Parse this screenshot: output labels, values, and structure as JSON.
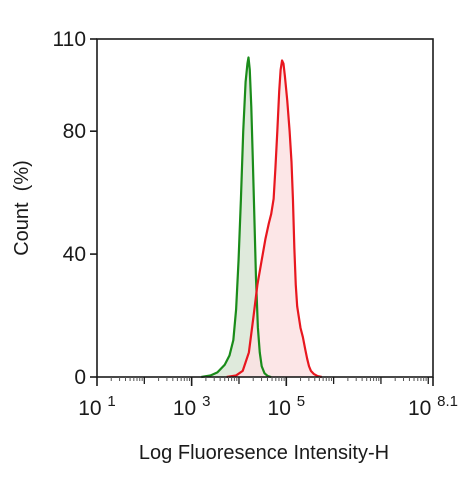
{
  "chart_data": {
    "type": "area",
    "title": "",
    "xlabel": "Log Fluoresence Intensity-H",
    "ylabel": "Count  (%)",
    "x_scale": "log10",
    "xlim": [
      10,
      125892541
    ],
    "ylim": [
      0,
      110
    ],
    "x_ticks": [
      {
        "base": "10",
        "exp": "1",
        "value": 10
      },
      {
        "base": "10",
        "exp": "3",
        "value": 1000
      },
      {
        "base": "10",
        "exp": "5",
        "value": 100000
      },
      {
        "base": "10",
        "exp": "8.1",
        "value": 125892541
      }
    ],
    "y_ticks": [
      {
        "label": "0",
        "value": 0
      },
      {
        "label": "40",
        "value": 40
      },
      {
        "label": "80",
        "value": 80
      },
      {
        "label": "110",
        "value": 110
      }
    ],
    "grid": false,
    "legend": "none",
    "series": [
      {
        "color": "#1a8c1a",
        "fill": "#d9e6d6",
        "points": [
          [
            1600,
            0
          ],
          [
            2500,
            0.5
          ],
          [
            3500,
            1.5
          ],
          [
            5000,
            4
          ],
          [
            6300,
            7
          ],
          [
            7600,
            12
          ],
          [
            8700,
            22
          ],
          [
            9800,
            38
          ],
          [
            11000,
            58
          ],
          [
            12300,
            80
          ],
          [
            13800,
            96
          ],
          [
            15100,
            102
          ],
          [
            15900,
            104
          ],
          [
            16900,
            100
          ],
          [
            18200,
            88
          ],
          [
            19500,
            72
          ],
          [
            20900,
            55
          ],
          [
            22900,
            32
          ],
          [
            25100,
            16
          ],
          [
            27500,
            8
          ],
          [
            30200,
            3.5
          ],
          [
            34700,
            1.2
          ],
          [
            40700,
            0.3
          ],
          [
            47900,
            0
          ]
        ]
      },
      {
        "color": "#e8171f",
        "fill": "#fbe2e3",
        "points": [
          [
            5500,
            0
          ],
          [
            8700,
            0.5
          ],
          [
            12000,
            2
          ],
          [
            16200,
            8
          ],
          [
            20400,
            20
          ],
          [
            24500,
            30
          ],
          [
            30200,
            38
          ],
          [
            36300,
            45
          ],
          [
            42700,
            50
          ],
          [
            47900,
            53
          ],
          [
            54000,
            58
          ],
          [
            58900,
            68
          ],
          [
            64600,
            80
          ],
          [
            70800,
            93
          ],
          [
            75900,
            100
          ],
          [
            81300,
            103
          ],
          [
            87100,
            102
          ],
          [
            93300,
            98
          ],
          [
            104700,
            90
          ],
          [
            117500,
            80
          ],
          [
            128800,
            70
          ],
          [
            138000,
            58
          ],
          [
            147900,
            42
          ],
          [
            158500,
            30
          ],
          [
            169800,
            23
          ],
          [
            182000,
            20
          ],
          [
            199500,
            16
          ],
          [
            223900,
            13
          ],
          [
            251200,
            9
          ],
          [
            275400,
            6
          ],
          [
            302000,
            3.5
          ],
          [
            331100,
            2
          ],
          [
            380200,
            1
          ],
          [
            457100,
            0.3
          ],
          [
            562300,
            0
          ]
        ]
      }
    ]
  }
}
